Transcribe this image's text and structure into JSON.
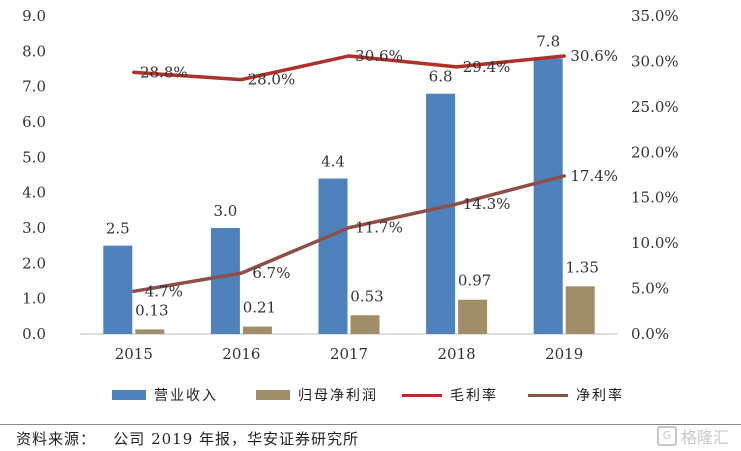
{
  "chart_data": {
    "type": "bar",
    "categories": [
      "2015",
      "2016",
      "2017",
      "2018",
      "2019"
    ],
    "series": [
      {
        "name": "营业收入",
        "kind": "bar",
        "axis": "left",
        "color": "#4f81bd",
        "values": [
          2.5,
          3.0,
          4.4,
          6.8,
          7.8
        ],
        "labels": [
          "2.5",
          "3.0",
          "4.4",
          "6.8",
          "7.8"
        ]
      },
      {
        "name": "归母净利润",
        "kind": "bar",
        "axis": "left",
        "color": "#a08e68",
        "values": [
          0.13,
          0.21,
          0.53,
          0.97,
          1.35
        ],
        "labels": [
          "0.13",
          "0.21",
          "0.53",
          "0.97",
          "1.35"
        ]
      },
      {
        "name": "毛利率",
        "kind": "line",
        "axis": "right",
        "color": "#b0302a",
        "values": [
          28.8,
          28.0,
          30.6,
          29.4,
          30.6
        ],
        "labels": [
          "28.8%",
          "28.0%",
          "30.6%",
          "29.4%",
          "30.6%"
        ]
      },
      {
        "name": "净利率",
        "kind": "line",
        "axis": "right",
        "color": "#8c5048",
        "values": [
          4.7,
          6.7,
          11.7,
          14.3,
          17.4
        ],
        "labels": [
          "4.7%",
          "6.7%",
          "11.7%",
          "14.3%",
          "17.4%"
        ]
      }
    ],
    "ylim_left": [
      0,
      9
    ],
    "ylim_right": [
      0,
      35
    ],
    "yticks_left": [
      "0.0",
      "1.0",
      "2.0",
      "3.0",
      "4.0",
      "5.0",
      "6.0",
      "7.0",
      "8.0",
      "9.0"
    ],
    "yticks_right": [
      "0.0%",
      "5.0%",
      "10.0%",
      "15.0%",
      "20.0%",
      "25.0%",
      "30.0%",
      "35.0%"
    ],
    "grid": false,
    "legend": "bottom"
  },
  "legend": {
    "revenue": "营业收入",
    "net_profit": "归母净利润",
    "gross_margin": "毛利率",
    "net_margin": "净利率"
  },
  "source": "资料来源：   公司 2019 年报，华安证券研究所",
  "watermark": "格隆汇"
}
